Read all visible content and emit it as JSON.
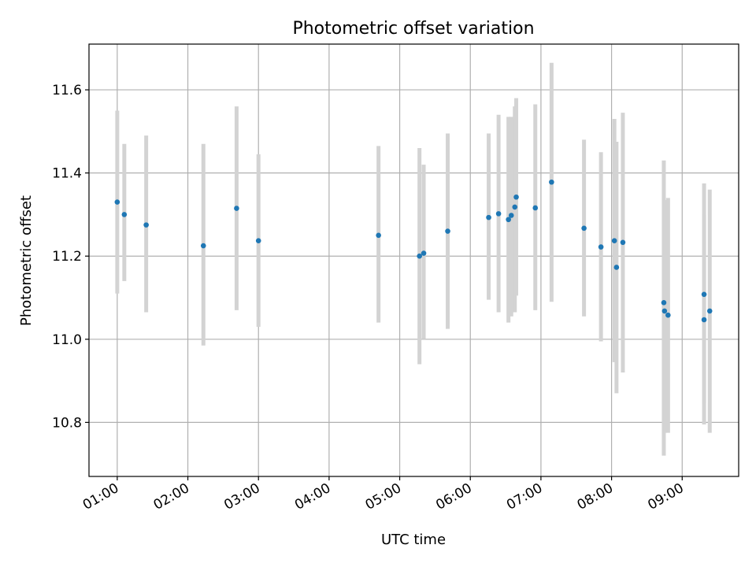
{
  "chart_data": {
    "type": "scatter",
    "title": "Photometric offset variation",
    "xlabel": "UTC time",
    "ylabel": "Photometric offset",
    "grid": true,
    "legend": "none",
    "x_unit": "hours UTC",
    "xlim": [
      0.6,
      9.8
    ],
    "ylim": [
      10.67,
      11.71
    ],
    "x_ticks": [
      {
        "value": 1,
        "label": "01:00"
      },
      {
        "value": 2,
        "label": "02:00"
      },
      {
        "value": 3,
        "label": "03:00"
      },
      {
        "value": 4,
        "label": "04:00"
      },
      {
        "value": 5,
        "label": "05:00"
      },
      {
        "value": 6,
        "label": "06:00"
      },
      {
        "value": 7,
        "label": "07:00"
      },
      {
        "value": 8,
        "label": "08:00"
      },
      {
        "value": 9,
        "label": "09:00"
      }
    ],
    "y_ticks": [
      {
        "value": 10.8,
        "label": "10.8"
      },
      {
        "value": 11.0,
        "label": "11.0"
      },
      {
        "value": 11.2,
        "label": "11.2"
      },
      {
        "value": 11.4,
        "label": "11.4"
      },
      {
        "value": 11.6,
        "label": "11.6"
      }
    ],
    "colors": {
      "marker": "#1f77b4",
      "errorbar": "#d3d3d3",
      "grid": "#b0b0b0"
    },
    "series": [
      {
        "points": [
          {
            "x": 1.0,
            "y": 11.33,
            "ylow": 11.11,
            "yhigh": 11.55
          },
          {
            "x": 1.1,
            "y": 11.3,
            "ylow": 11.14,
            "yhigh": 11.47
          },
          {
            "x": 1.41,
            "y": 11.275,
            "ylow": 11.065,
            "yhigh": 11.49
          },
          {
            "x": 2.22,
            "y": 11.225,
            "ylow": 10.985,
            "yhigh": 11.47
          },
          {
            "x": 2.69,
            "y": 11.315,
            "ylow": 11.07,
            "yhigh": 11.56
          },
          {
            "x": 3.0,
            "y": 11.237,
            "ylow": 11.03,
            "yhigh": 11.445
          },
          {
            "x": 4.7,
            "y": 11.25,
            "ylow": 11.04,
            "yhigh": 11.465
          },
          {
            "x": 5.28,
            "y": 11.2,
            "ylow": 10.94,
            "yhigh": 11.46
          },
          {
            "x": 5.34,
            "y": 11.207,
            "ylow": 11.0,
            "yhigh": 11.42
          },
          {
            "x": 5.68,
            "y": 11.26,
            "ylow": 11.025,
            "yhigh": 11.495
          },
          {
            "x": 6.26,
            "y": 11.293,
            "ylow": 11.095,
            "yhigh": 11.495
          },
          {
            "x": 6.4,
            "y": 11.302,
            "ylow": 11.065,
            "yhigh": 11.54
          },
          {
            "x": 6.54,
            "y": 11.288,
            "ylow": 11.04,
            "yhigh": 11.535
          },
          {
            "x": 6.58,
            "y": 11.298,
            "ylow": 11.055,
            "yhigh": 11.535
          },
          {
            "x": 6.63,
            "y": 11.318,
            "ylow": 11.065,
            "yhigh": 11.56
          },
          {
            "x": 6.65,
            "y": 11.342,
            "ylow": 11.105,
            "yhigh": 11.58
          },
          {
            "x": 6.92,
            "y": 11.316,
            "ylow": 11.07,
            "yhigh": 11.565
          },
          {
            "x": 7.15,
            "y": 11.378,
            "ylow": 11.09,
            "yhigh": 11.665
          },
          {
            "x": 7.61,
            "y": 11.267,
            "ylow": 11.055,
            "yhigh": 11.48
          },
          {
            "x": 7.85,
            "y": 11.222,
            "ylow": 10.995,
            "yhigh": 11.45
          },
          {
            "x": 8.04,
            "y": 11.237,
            "ylow": 10.945,
            "yhigh": 11.53
          },
          {
            "x": 8.07,
            "y": 11.173,
            "ylow": 10.87,
            "yhigh": 11.475
          },
          {
            "x": 8.16,
            "y": 11.233,
            "ylow": 10.92,
            "yhigh": 11.545
          },
          {
            "x": 8.74,
            "y": 11.088,
            "ylow": 10.72,
            "yhigh": 11.43
          },
          {
            "x": 8.75,
            "y": 11.068,
            "ylow": 10.775,
            "yhigh": 11.335
          },
          {
            "x": 8.8,
            "y": 11.058,
            "ylow": 10.775,
            "yhigh": 11.34
          },
          {
            "x": 9.31,
            "y": 11.108,
            "ylow": 10.845,
            "yhigh": 11.375
          },
          {
            "x": 9.31,
            "y": 11.047,
            "ylow": 10.795,
            "yhigh": 11.3
          },
          {
            "x": 9.39,
            "y": 11.068,
            "ylow": 10.775,
            "yhigh": 11.36
          }
        ]
      }
    ]
  }
}
